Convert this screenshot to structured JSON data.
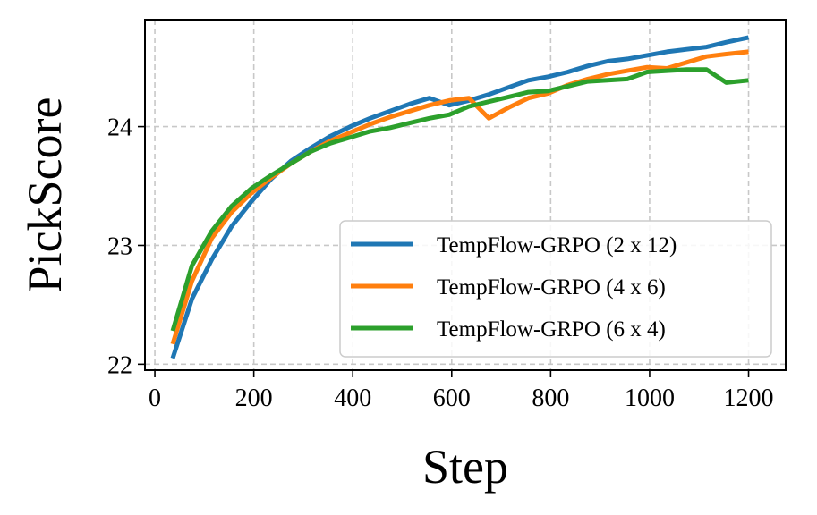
{
  "chart_data": {
    "type": "line",
    "xlabel": "Step",
    "ylabel": "PickScore",
    "xlim": [
      -20,
      1275
    ],
    "ylim": [
      21.95,
      24.9
    ],
    "xticks": [
      0,
      200,
      400,
      600,
      800,
      1000,
      1200
    ],
    "yticks": [
      22,
      23,
      24
    ],
    "grid": true,
    "legend_position": "lower-right",
    "series": [
      {
        "name": "TempFlow-GRPO (2 x 12)",
        "color": "#1f77b4",
        "x": [
          36,
          75,
          115,
          155,
          195,
          235,
          275,
          315,
          355,
          395,
          435,
          475,
          515,
          555,
          595,
          635,
          675,
          715,
          755,
          795,
          835,
          875,
          915,
          955,
          995,
          1035,
          1075,
          1115,
          1155,
          1200
        ],
        "y": [
          22.05,
          22.55,
          22.88,
          23.16,
          23.37,
          23.56,
          23.71,
          23.82,
          23.92,
          24.0,
          24.07,
          24.13,
          24.19,
          24.24,
          24.18,
          24.22,
          24.27,
          24.33,
          24.39,
          24.42,
          24.46,
          24.51,
          24.55,
          24.57,
          24.6,
          24.63,
          24.65,
          24.67,
          24.71,
          24.75
        ]
      },
      {
        "name": "TempFlow-GRPO (4 x 6)",
        "color": "#ff7f0e",
        "x": [
          36,
          75,
          115,
          155,
          195,
          235,
          275,
          315,
          355,
          395,
          435,
          475,
          515,
          555,
          595,
          635,
          675,
          715,
          755,
          795,
          835,
          875,
          915,
          955,
          995,
          1035,
          1075,
          1115,
          1155,
          1200
        ],
        "y": [
          22.17,
          22.7,
          23.06,
          23.28,
          23.44,
          23.57,
          23.69,
          23.79,
          23.88,
          23.95,
          24.02,
          24.08,
          24.13,
          24.18,
          24.22,
          24.24,
          24.07,
          24.16,
          24.24,
          24.28,
          24.35,
          24.4,
          24.44,
          24.47,
          24.5,
          24.49,
          24.54,
          24.59,
          24.61,
          24.63
        ]
      },
      {
        "name": "TempFlow-GRPO (6 x 4)",
        "color": "#2ca02c",
        "x": [
          36,
          75,
          115,
          155,
          195,
          235,
          275,
          315,
          355,
          395,
          435,
          475,
          515,
          555,
          595,
          635,
          675,
          715,
          755,
          795,
          835,
          875,
          915,
          955,
          995,
          1035,
          1075,
          1115,
          1155,
          1200
        ],
        "y": [
          22.28,
          22.83,
          23.12,
          23.33,
          23.48,
          23.59,
          23.69,
          23.79,
          23.86,
          23.91,
          23.96,
          23.99,
          24.03,
          24.07,
          24.1,
          24.17,
          24.21,
          24.25,
          24.29,
          24.3,
          24.34,
          24.38,
          24.39,
          24.4,
          24.46,
          24.47,
          24.48,
          24.48,
          24.37,
          24.39
        ]
      }
    ]
  }
}
